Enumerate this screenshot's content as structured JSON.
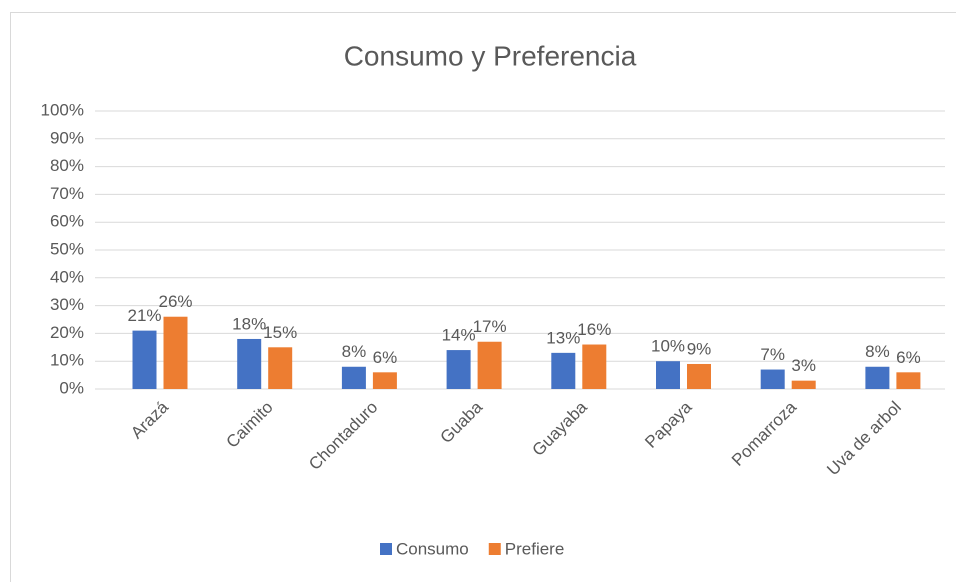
{
  "chart_data": {
    "type": "bar",
    "title": "Consumo y Preferencia",
    "categories": [
      "Arazá",
      "Caimito",
      "Chontaduro",
      "Guaba",
      "Guayaba",
      "Papaya",
      "Pomarroza",
      "Uva de arbol"
    ],
    "series": [
      {
        "name": "Consumo",
        "color": "#4472c4",
        "values": [
          21,
          18,
          8,
          14,
          13,
          10,
          7,
          8
        ],
        "value_labels": [
          "21%",
          "18%",
          "8%",
          "14%",
          "13%",
          "10%",
          "7%",
          "8%"
        ]
      },
      {
        "name": "Prefiere",
        "color": "#ed7d31",
        "values": [
          26,
          15,
          6,
          17,
          16,
          9,
          3,
          6
        ],
        "value_labels": [
          "26%",
          "15%",
          "6%",
          "17%",
          "16%",
          "9%",
          "3%",
          "6%"
        ]
      }
    ],
    "ylim": [
      0,
      100
    ],
    "yticks": [
      {
        "value": 0,
        "label": "0%"
      },
      {
        "value": 10,
        "label": "10%"
      },
      {
        "value": 20,
        "label": "20%"
      },
      {
        "value": 30,
        "label": "30%"
      },
      {
        "value": 40,
        "label": "40%"
      },
      {
        "value": 50,
        "label": "50%"
      },
      {
        "value": 60,
        "label": "60%"
      },
      {
        "value": 70,
        "label": "70%"
      },
      {
        "value": 80,
        "label": "80%"
      },
      {
        "value": 90,
        "label": "90%"
      },
      {
        "value": 100,
        "label": "100%"
      }
    ],
    "grid": true,
    "legend": "bottom"
  }
}
